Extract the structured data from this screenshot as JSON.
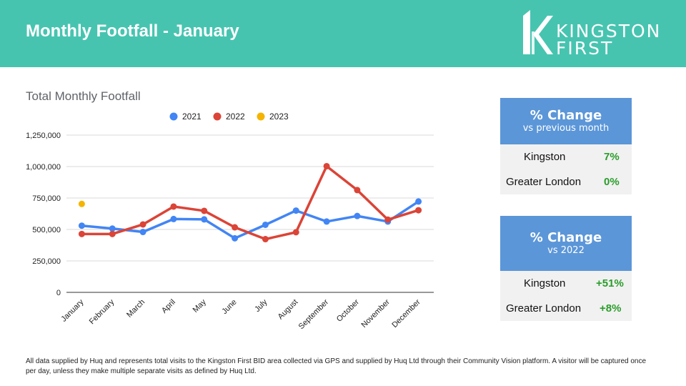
{
  "header": {
    "title": "Monthly Footfall - January",
    "logo_line1": "KINGSTON",
    "logo_line2": "FIRST",
    "color": "#47c4b0"
  },
  "chart_data": {
    "type": "line",
    "title": "Total Monthly Footfall",
    "xlabel": "",
    "ylabel": "",
    "categories": [
      "January",
      "February",
      "March",
      "April",
      "May",
      "June",
      "July",
      "August",
      "September",
      "October",
      "November",
      "December"
    ],
    "ylim": [
      0,
      1250000
    ],
    "yticks": [
      0,
      250000,
      500000,
      750000,
      1000000,
      1250000
    ],
    "ytick_labels": [
      "0",
      "250,000",
      "500,000",
      "750,000",
      "1,000,000",
      "1,250,000"
    ],
    "grid": true,
    "legend": "top",
    "series": [
      {
        "name": "2021",
        "color": "#4285f4",
        "values": [
          530000,
          507000,
          480000,
          583000,
          580000,
          430000,
          537000,
          650000,
          563000,
          607000,
          563000,
          722000
        ]
      },
      {
        "name": "2022",
        "color": "#db4437",
        "values": [
          464000,
          464000,
          540000,
          682000,
          648000,
          517000,
          423000,
          478000,
          1003000,
          813000,
          578000,
          653000
        ]
      },
      {
        "name": "2023",
        "color": "#f4b400",
        "values": [
          703000,
          null,
          null,
          null,
          null,
          null,
          null,
          null,
          null,
          null,
          null,
          null
        ]
      }
    ]
  },
  "cards": [
    {
      "title": "% Change",
      "subtitle": "vs previous month",
      "rows": [
        {
          "label": "Kingston",
          "value": "7%"
        },
        {
          "label": "Greater London",
          "value": "0%"
        }
      ]
    },
    {
      "title": "% Change",
      "subtitle": "vs 2022",
      "rows": [
        {
          "label": "Kingston",
          "value": "+51%"
        },
        {
          "label": "Greater London",
          "value": "+8%"
        }
      ]
    }
  ],
  "footnote": "All data supplied by Huq and represents total visits to the Kingston First BID area collected via GPS and supplied by Huq Ltd through their Community Vision platform. A visitor will be captured once per day, unless they make multiple separate visits as defined by Huq Ltd."
}
